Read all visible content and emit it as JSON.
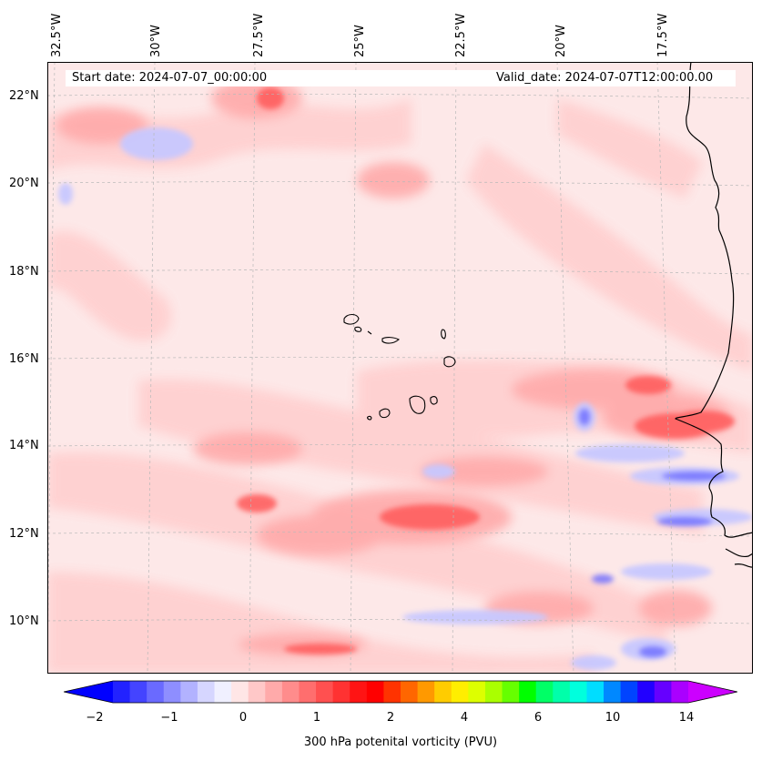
{
  "map": {
    "region": "Eastern tropical Atlantic / Cape Verde / West Africa coast",
    "longitude_labels": [
      "32.5°W",
      "30°W",
      "27.5°W",
      "25°W",
      "22.5°W",
      "20°W",
      "17.5°W"
    ],
    "latitude_labels": [
      "22°N",
      "20°N",
      "18°N",
      "16°N",
      "14°N",
      "12°N",
      "10°N"
    ],
    "start_date": "Start date: 2024-07-07_00:00:00",
    "valid_date": "Valid_date: 2024-07-07T12:00:00.00",
    "field": "300 hPa potential vorticity",
    "colormap_colors": [
      "#0000ff",
      "#2222ff",
      "#4444ff",
      "#6a6aff",
      "#8e8eff",
      "#b2b2ff",
      "#d6d6ff",
      "#f0f0ff",
      "#ffe6e6",
      "#ffc8c8",
      "#ffaaaa",
      "#ff8c8c",
      "#ff6e6e",
      "#ff5050",
      "#ff3232",
      "#ff1414",
      "#ff0000",
      "#ff3300",
      "#ff6600",
      "#ff9900",
      "#ffcc00",
      "#ffee00",
      "#ddff00",
      "#aaff00",
      "#66ff00",
      "#00ff00",
      "#00ff66",
      "#00ffaa",
      "#00ffdd",
      "#00ddff",
      "#0088ff",
      "#0044ff",
      "#2200ff",
      "#6600ff",
      "#aa00ff",
      "#cc00ff"
    ],
    "colorbar_ticks": [
      "−2",
      "−1",
      "0",
      "1",
      "2",
      "4",
      "6",
      "10",
      "14"
    ],
    "colorbar_label": "300 hPa potenital vorticity (PVU)"
  }
}
